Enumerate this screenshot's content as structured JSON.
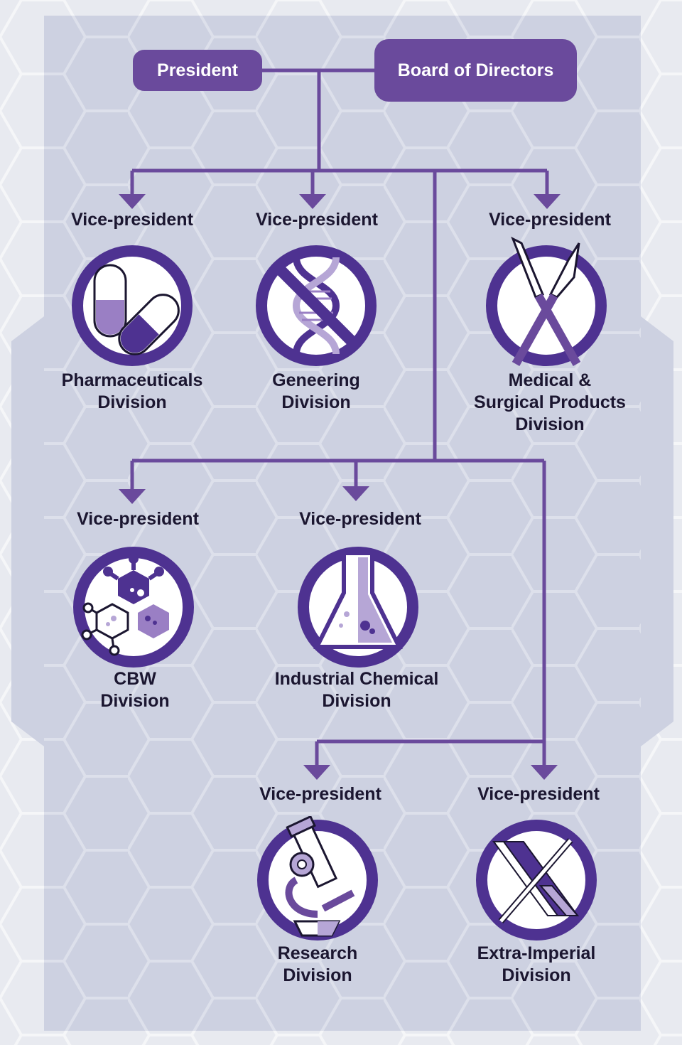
{
  "top": {
    "president": "President",
    "board": "Board of Directors"
  },
  "divisions": [
    {
      "vp": "Vice-president",
      "name_lines": [
        "Pharmaceuticals",
        "Division"
      ],
      "icon": "pills-icon"
    },
    {
      "vp": "Vice-president",
      "name_lines": [
        "Geneering",
        "Division"
      ],
      "icon": "dna-icon"
    },
    {
      "vp": "Vice-president",
      "name_lines": [
        "Medical &",
        "Surgical Products",
        "Division"
      ],
      "icon": "scalpels-icon"
    },
    {
      "vp": "Vice-president",
      "name_lines": [
        "CBW",
        "Division"
      ],
      "icon": "virus-icon"
    },
    {
      "vp": "Vice-president",
      "name_lines": [
        "Industrial Chemical",
        "Division"
      ],
      "icon": "flask-icon"
    },
    {
      "vp": "Vice-president",
      "name_lines": [
        "Research",
        "Division"
      ],
      "icon": "microscope-icon"
    },
    {
      "vp": "Vice-president",
      "name_lines": [
        "Extra-Imperial",
        "Division"
      ],
      "icon": "x-emblem-icon"
    }
  ],
  "colors": {
    "accent": "#6a4a9c",
    "dark_purple": "#4e3291",
    "panel": "#cfd3e2",
    "text": "#1b1630"
  }
}
